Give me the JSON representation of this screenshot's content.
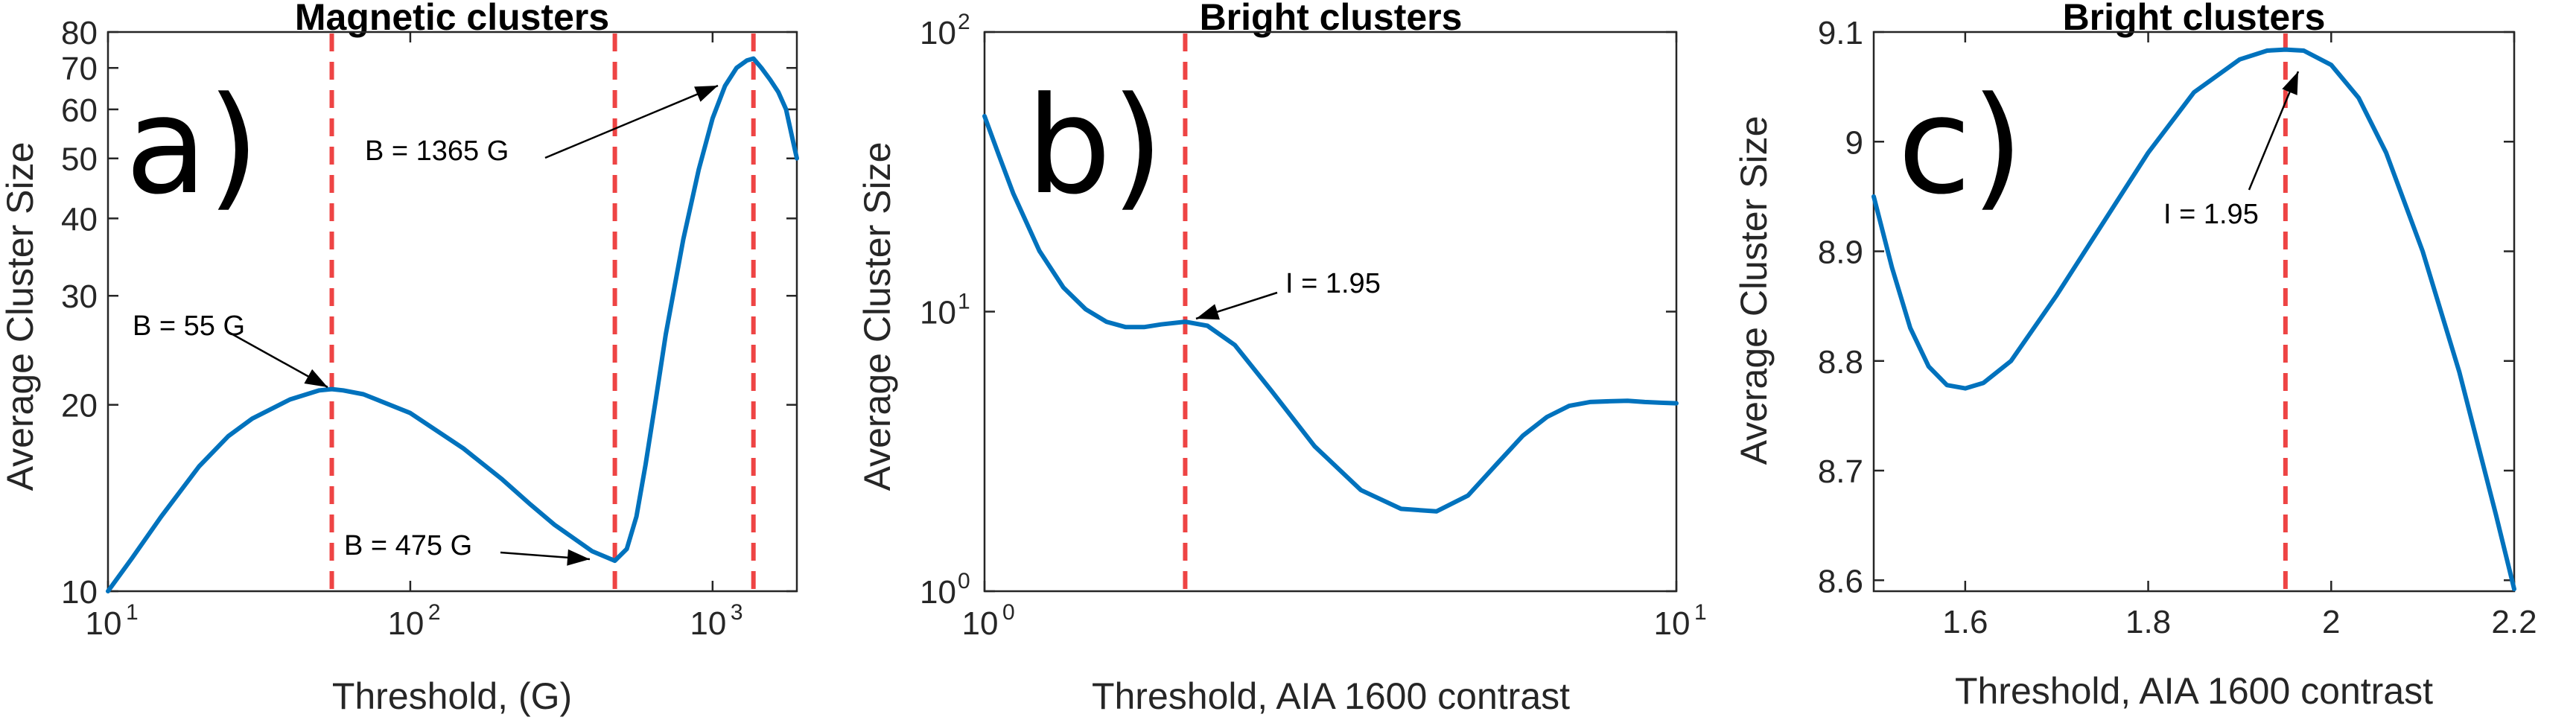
{
  "chart_data": [
    {
      "type": "line",
      "panel_letter": "a)",
      "title": "Magnetic clusters",
      "xlabel": "Threshold, (G)",
      "ylabel": "Average Cluster Size",
      "xscale": "log",
      "yscale": "log",
      "xlim": [
        10,
        1900
      ],
      "ylim": [
        10,
        80
      ],
      "xticks": [
        {
          "value": 10,
          "base": "10",
          "exp": "1"
        },
        {
          "value": 100,
          "base": "10",
          "exp": "2"
        },
        {
          "value": 1000,
          "base": "10",
          "exp": "3"
        }
      ],
      "yticks": [
        10,
        20,
        30,
        40,
        50,
        60,
        70,
        80
      ],
      "series": [
        {
          "x": [
            10,
            12,
            15,
            20,
            25,
            30,
            40,
            50,
            55,
            60,
            70,
            100,
            150,
            200,
            250,
            300,
            400,
            475,
            520,
            560,
            600,
            650,
            700,
            800,
            900,
            1000,
            1100,
            1200,
            1300,
            1365,
            1450,
            1550,
            1650,
            1750,
            1850,
            1900
          ],
          "y": [
            10,
            11.3,
            13.2,
            15.9,
            17.8,
            19.0,
            20.4,
            21.1,
            21.2,
            21.1,
            20.8,
            19.4,
            17.0,
            15.2,
            13.8,
            12.8,
            11.6,
            11.2,
            11.7,
            13.2,
            16.0,
            20.5,
            26.0,
            37.0,
            48.0,
            58.0,
            65.5,
            70.0,
            72.0,
            72.5,
            70.0,
            67.0,
            64.0,
            60.0,
            53.0,
            50.0
          ]
        }
      ],
      "vlines": [
        55,
        475,
        1365
      ],
      "annotations": [
        {
          "text": "B = 55 G",
          "x": 55,
          "y": 21.2
        },
        {
          "text": "B = 475 G",
          "x": 475,
          "y": 11.2
        },
        {
          "text": "B = 1365 G",
          "x": 1365,
          "y": 72.5
        }
      ]
    },
    {
      "type": "line",
      "panel_letter": "b)",
      "title": "Bright clusters",
      "xlabel": "Threshold, AIA 1600 contrast",
      "ylabel": "Average Cluster Size",
      "xscale": "log",
      "yscale": "log",
      "xlim": [
        1,
        10
      ],
      "ylim": [
        1,
        100
      ],
      "xticks": [
        {
          "value": 1,
          "base": "10",
          "exp": "0"
        },
        {
          "value": 10,
          "base": "10",
          "exp": "1"
        }
      ],
      "yticks": [
        {
          "value": 1,
          "base": "10",
          "exp": "0"
        },
        {
          "value": 10,
          "base": "10",
          "exp": "1"
        },
        {
          "value": 100,
          "base": "10",
          "exp": "2"
        }
      ],
      "series": [
        {
          "x": [
            1.0,
            1.05,
            1.1,
            1.2,
            1.3,
            1.4,
            1.5,
            1.6,
            1.7,
            1.8,
            1.95,
            2.1,
            2.3,
            2.6,
            3.0,
            3.5,
            4.0,
            4.5,
            5.0,
            5.5,
            6.0,
            6.5,
            7.0,
            7.5,
            8.0,
            8.5,
            9.0,
            9.5,
            10.0
          ],
          "y": [
            50.0,
            36.0,
            26.5,
            16.5,
            12.2,
            10.2,
            9.2,
            8.8,
            8.8,
            9.0,
            9.2,
            8.9,
            7.6,
            5.2,
            3.3,
            2.3,
            1.97,
            1.93,
            2.2,
            2.85,
            3.6,
            4.2,
            4.6,
            4.75,
            4.78,
            4.8,
            4.75,
            4.72,
            4.7
          ]
        }
      ],
      "vlines": [
        1.95
      ],
      "annotations": [
        {
          "text": "I = 1.95",
          "x": 1.95,
          "y": 9.2
        }
      ]
    },
    {
      "type": "line",
      "panel_letter": "c)",
      "title": "Bright clusters",
      "xlabel": "Threshold, AIA 1600 contrast",
      "ylabel": "Average Cluster Size",
      "xscale": "linear",
      "yscale": "linear",
      "xlim": [
        1.5,
        2.2
      ],
      "ylim": [
        8.59,
        9.1
      ],
      "xticks": [
        1.6,
        1.8,
        2,
        2.2
      ],
      "yticks": [
        8.6,
        8.7,
        8.8,
        8.9,
        9,
        9.1
      ],
      "series": [
        {
          "x": [
            1.5,
            1.52,
            1.54,
            1.56,
            1.58,
            1.6,
            1.62,
            1.65,
            1.7,
            1.75,
            1.8,
            1.85,
            1.9,
            1.93,
            1.95,
            1.97,
            2.0,
            2.03,
            2.06,
            2.1,
            2.14,
            2.18,
            2.2
          ],
          "y": [
            8.95,
            8.885,
            8.83,
            8.795,
            8.778,
            8.775,
            8.78,
            8.8,
            8.86,
            8.925,
            8.99,
            9.045,
            9.075,
            9.083,
            9.084,
            9.083,
            9.07,
            9.04,
            8.99,
            8.9,
            8.79,
            8.66,
            8.592
          ]
        }
      ],
      "vlines": [
        1.95
      ],
      "annotations": [
        {
          "text": "I = 1.95",
          "x": 1.95,
          "y": 9.084
        }
      ]
    }
  ]
}
